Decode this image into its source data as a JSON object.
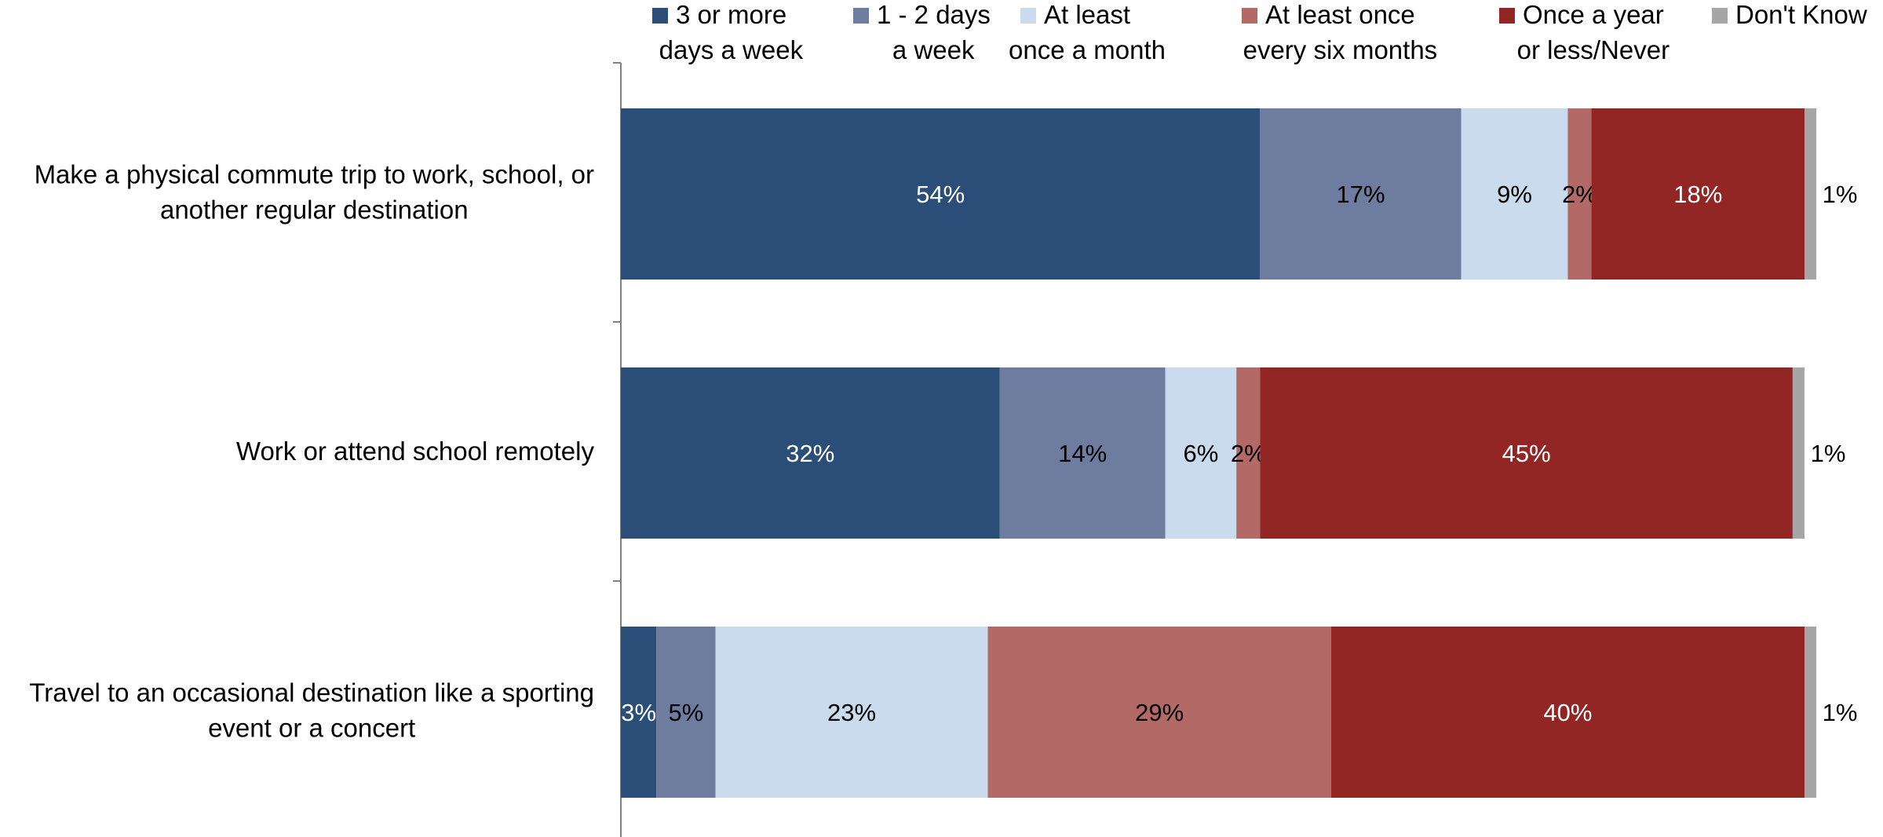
{
  "chart_data": {
    "type": "bar",
    "orientation": "horizontal",
    "stacked": true,
    "percent_stacked": true,
    "categories": [
      "Make a physical commute trip to work, school, or another regular destination",
      "Work or attend school remotely",
      "Travel to an occasional destination like a sporting event or a concert"
    ],
    "category_lines": [
      [
        "Make a physical commute trip to work, school, or",
        "another regular destination"
      ],
      [
        "Work or attend school remotely"
      ],
      [
        "Travel to an occasional destination like a sporting",
        "event or a concert"
      ]
    ],
    "series": [
      {
        "name": "3 or more days a week",
        "legend_lines": [
          "3 or more",
          "days a week"
        ],
        "color": "#2a4e77",
        "label_color": "#ffffff",
        "values": [
          54,
          32,
          3
        ]
      },
      {
        "name": "1 - 2 days a week",
        "legend_lines": [
          "1 - 2 days",
          "a week"
        ],
        "color": "#6e7c9f",
        "label_color": "#000000",
        "values": [
          17,
          14,
          5
        ]
      },
      {
        "name": "At least once a month",
        "legend_lines": [
          "At least",
          "once a month"
        ],
        "color": "#c9dbec",
        "label_color": "#000000",
        "values": [
          9,
          6,
          23
        ]
      },
      {
        "name": "At least once every six months",
        "legend_lines": [
          "At least once",
          "every six months"
        ],
        "color": "#b36a67",
        "label_color": "#000000",
        "values": [
          2,
          2,
          29
        ]
      },
      {
        "name": "Once a year or less/Never",
        "legend_lines": [
          "Once a year",
          "or less/Never"
        ],
        "color": "#922624",
        "label_color": "#ffffff",
        "values": [
          18,
          45,
          40
        ]
      },
      {
        "name": "Don't Know",
        "legend_lines": [
          "Don't Know"
        ],
        "color": "#a6a6a6",
        "label_color": "#000000",
        "values": [
          1,
          1,
          1
        ]
      }
    ],
    "title": "",
    "xlabel": "",
    "ylabel": "",
    "xlim": [
      0,
      100
    ],
    "grid": false,
    "legend_position": "top"
  }
}
